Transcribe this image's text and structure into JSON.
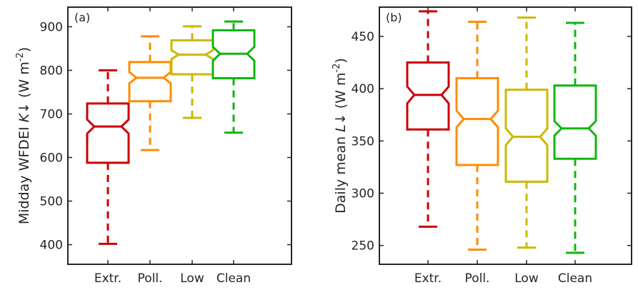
{
  "chart_data": [
    {
      "type": "boxplot",
      "panel_label": "(a)",
      "ylabel": "Midday WFDEI K↓ (W m⁻²)",
      "ylabel_parts": {
        "prefix": "Midday WFDEI",
        "symbol": "K↓",
        "unit_open": "(W m",
        "unit_exp": "-2",
        "unit_close": ")"
      },
      "ylim": [
        355,
        945
      ],
      "yticks": [
        400,
        500,
        600,
        700,
        800,
        900
      ],
      "categories": [
        "Extr.",
        "Poll.",
        "Low",
        "Clean"
      ],
      "notched": true,
      "grid": false,
      "boxes": [
        {
          "category": "Extr.",
          "color": "#cc0000",
          "whisker_low": 402,
          "q1": 588,
          "median": 671,
          "q3": 724,
          "whisker_high": 800,
          "notch_low": 655,
          "notch_high": 687
        },
        {
          "category": "Poll.",
          "color": "#ff8c00",
          "whisker_low": 617,
          "q1": 729,
          "median": 783,
          "q3": 819,
          "whisker_high": 878,
          "notch_low": 770,
          "notch_high": 796
        },
        {
          "category": "Low",
          "color": "#cdb800",
          "whisker_low": 691,
          "q1": 791,
          "median": 836,
          "q3": 869,
          "whisker_high": 901,
          "notch_low": 826,
          "notch_high": 846
        },
        {
          "category": "Clean",
          "color": "#11b511",
          "whisker_low": 657,
          "q1": 782,
          "median": 838,
          "q3": 892,
          "whisker_high": 912,
          "notch_low": 822,
          "notch_high": 854
        }
      ]
    },
    {
      "type": "boxplot",
      "panel_label": "(b)",
      "ylabel": "Daily mean L↓ (W m⁻²)",
      "ylabel_parts": {
        "prefix": "Daily mean",
        "symbol": "L↓",
        "unit_open": "(W m",
        "unit_exp": "-2",
        "unit_close": ")"
      },
      "ylim": [
        232,
        478
      ],
      "yticks": [
        250,
        300,
        350,
        400,
        450
      ],
      "categories": [
        "Extr.",
        "Poll.",
        "Low",
        "Clean"
      ],
      "notched": true,
      "grid": false,
      "boxes": [
        {
          "category": "Extr.",
          "color": "#cc0000",
          "whisker_low": 268,
          "q1": 361,
          "median": 394,
          "q3": 425,
          "whisker_high": 474,
          "notch_low": 386,
          "notch_high": 402
        },
        {
          "category": "Poll.",
          "color": "#ff8c00",
          "whisker_low": 246,
          "q1": 327,
          "median": 371,
          "q3": 410,
          "whisker_high": 464,
          "notch_low": 363,
          "notch_high": 379
        },
        {
          "category": "Low",
          "color": "#cdb800",
          "whisker_low": 248,
          "q1": 311,
          "median": 354,
          "q3": 399,
          "whisker_high": 468,
          "notch_low": 346,
          "notch_high": 362
        },
        {
          "category": "Clean",
          "color": "#11b511",
          "whisker_low": 243,
          "q1": 333,
          "median": 362,
          "q3": 403,
          "whisker_high": 463,
          "notch_low": 355,
          "notch_high": 369
        }
      ]
    }
  ]
}
